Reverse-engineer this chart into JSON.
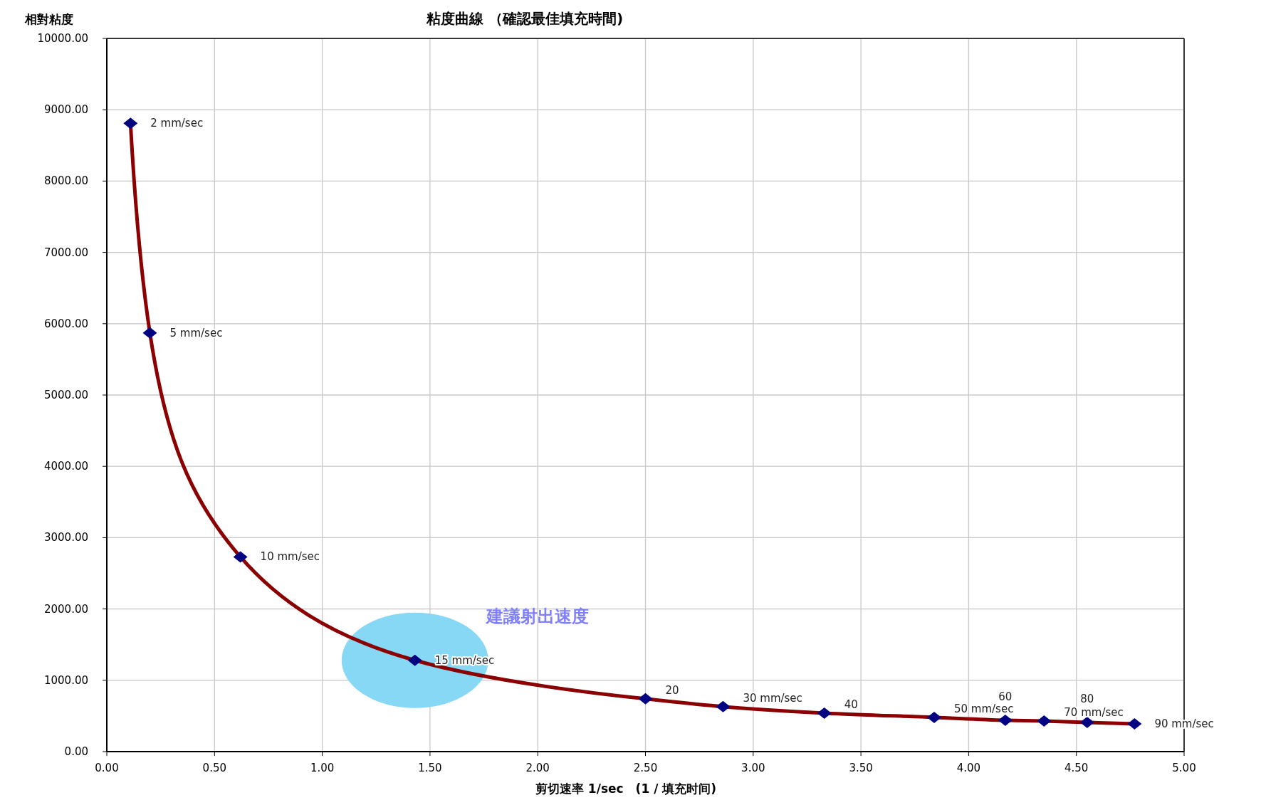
{
  "chart_data": {
    "type": "line",
    "title": "粘度曲線 （確認最佳填充時間)",
    "xlabel": "剪切速率 1/sec　(1 / 填充时间)",
    "ylabel": "相對粘度",
    "x": [
      0.11,
      0.2,
      0.62,
      1.43,
      2.5,
      2.86,
      3.33,
      3.84,
      4.17,
      4.35,
      4.55,
      4.77
    ],
    "series": [
      {
        "color": "#8b0000",
        "values": [
          8810,
          5870,
          2730,
          1280,
          740,
          630,
          540,
          480,
          440,
          430,
          410,
          390
        ]
      }
    ],
    "marker": "diamond",
    "grid": true,
    "xlim": [
      0,
      5
    ],
    "ylim": [
      0,
      10000
    ],
    "xticks": [
      {
        "value": 0,
        "label": "0.00"
      },
      {
        "value": 0.5,
        "label": "0.50"
      },
      {
        "value": 1,
        "label": "1.00"
      },
      {
        "value": 1.5,
        "label": "1.50"
      },
      {
        "value": 2,
        "label": "2.00"
      },
      {
        "value": 2.5,
        "label": "2.50"
      },
      {
        "value": 3,
        "label": "3.00"
      },
      {
        "value": 3.5,
        "label": "3.50"
      },
      {
        "value": 4,
        "label": "4.00"
      },
      {
        "value": 4.5,
        "label": "4.50"
      },
      {
        "value": 5,
        "label": "5.00"
      }
    ],
    "yticks": [
      {
        "value": 0,
        "label": "0.00"
      },
      {
        "value": 1000,
        "label": "1000.00"
      },
      {
        "value": 2000,
        "label": "2000.00"
      },
      {
        "value": 3000,
        "label": "3000.00"
      },
      {
        "value": 4000,
        "label": "4000.00"
      },
      {
        "value": 5000,
        "label": "5000.00"
      },
      {
        "value": 6000,
        "label": "6000.00"
      },
      {
        "value": 7000,
        "label": "7000.00"
      },
      {
        "value": 8000,
        "label": "8000.00"
      },
      {
        "value": 9000,
        "label": "9000.00"
      },
      {
        "value": 10000,
        "label": "10000.00"
      }
    ],
    "annotations": [
      {
        "text": "2 mm/sec",
        "x": 0.11,
        "y": 8810
      },
      {
        "text": "5 mm/sec",
        "x": 0.2,
        "y": 5870
      },
      {
        "text": "10 mm/sec",
        "x": 0.62,
        "y": 2730
      },
      {
        "text": "15 mm/sec",
        "x": 1.43,
        "y": 1280
      },
      "建議射出速度",
      {
        "text": "20",
        "x": 2.5,
        "y": 740
      },
      {
        "text": "30 mm/sec",
        "x": 2.86,
        "y": 630
      },
      {
        "text": "40",
        "x": 3.33,
        "y": 540
      },
      {
        "text": "50 mm/sec",
        "x": 3.84,
        "y": 480
      },
      {
        "text": "60",
        "x": 4.17,
        "y": 440
      },
      {
        "text": "70 mm/sec",
        "x": 4.35,
        "y": 430
      },
      {
        "text": "80",
        "x": 4.55,
        "y": 410
      },
      {
        "text": "90 mm/sec",
        "x": 4.77,
        "y": 390
      }
    ]
  }
}
